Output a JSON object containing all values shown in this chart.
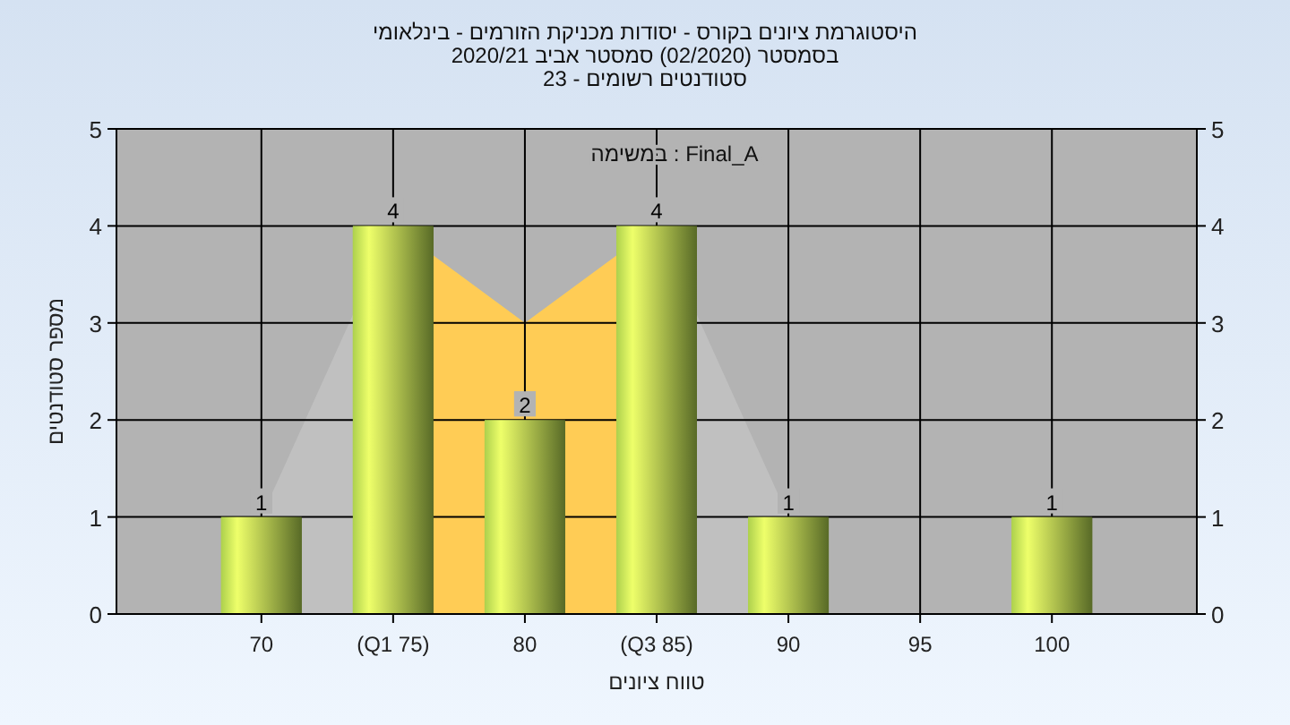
{
  "chart_data": {
    "type": "bar",
    "title": "היסטוגרמת ציונים בקורס - יסודות מכניקת הזורמים - בינלאומי",
    "subtitle": "בסמסטר (02/2020) סמסטר אביב 2020/21\nסטודנטים רשומים - 23",
    "xlabel": "טווח ציונים",
    "ylabel": "מספר סטודנטים",
    "annotations": [
      "במשימה : Final_A"
    ],
    "categories": [
      "70",
      "(Q1 75)",
      "80",
      "(Q3 85)",
      "90",
      "95",
      "100"
    ],
    "series": [
      {
        "type": "area",
        "color": "#c0c0c0",
        "values": [
          1,
          4,
          null,
          4,
          1,
          null,
          null
        ]
      },
      {
        "type": "area",
        "color": "#ffcc55",
        "values": [
          null,
          4,
          3,
          4,
          null,
          null,
          null
        ]
      },
      {
        "color": "#9bbb45",
        "values": [
          1,
          4,
          2,
          4,
          1,
          0,
          1
        ],
        "value_labels": [
          "1",
          "4",
          "2",
          "4",
          "1",
          null,
          "1"
        ]
      }
    ],
    "ylim": [
      0,
      5
    ],
    "yticks": [
      0,
      1,
      2,
      3,
      4,
      5
    ],
    "y2lim": [
      0,
      5
    ],
    "y2ticks": [
      0,
      1,
      2,
      3,
      4,
      5
    ],
    "grid": true
  }
}
